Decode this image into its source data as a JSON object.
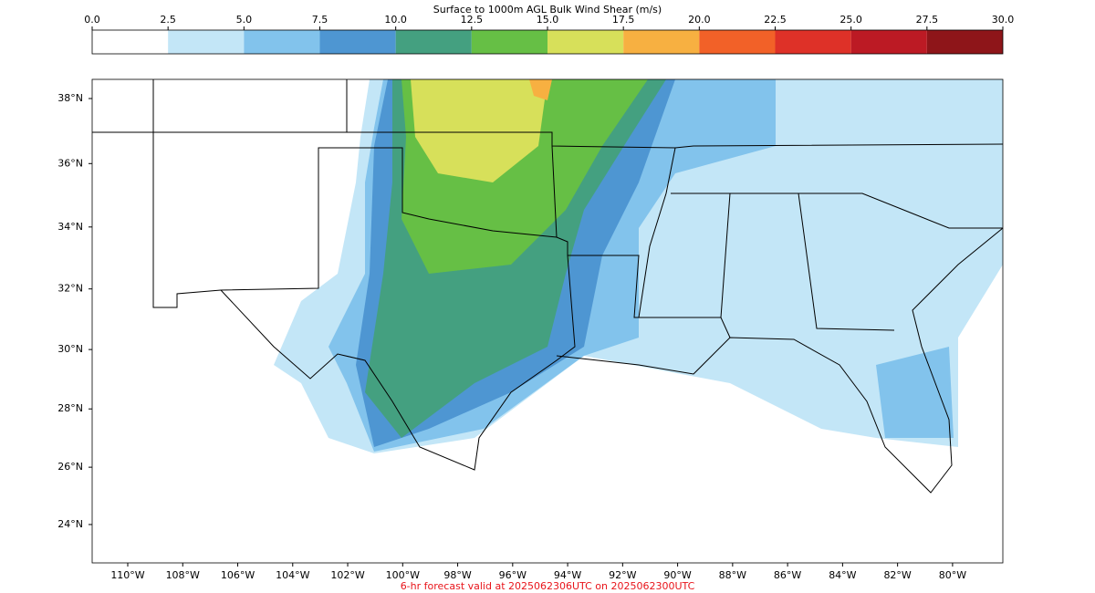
{
  "colorbar": {
    "title": "Surface to 1000m AGL Bulk Wind Shear (m/s)",
    "ticks": [
      {
        "value": 0,
        "label": "0.0"
      },
      {
        "value": 2.5,
        "label": "2.5"
      },
      {
        "value": 5,
        "label": "5.0"
      },
      {
        "value": 7.5,
        "label": "7.5"
      },
      {
        "value": 10,
        "label": "10.0"
      },
      {
        "value": 12.5,
        "label": "12.5"
      },
      {
        "value": 15,
        "label": "15.0"
      },
      {
        "value": 17.5,
        "label": "17.5"
      },
      {
        "value": 20,
        "label": "20.0"
      },
      {
        "value": 22.5,
        "label": "22.5"
      },
      {
        "value": 25,
        "label": "25.0"
      },
      {
        "value": 27.5,
        "label": "27.5"
      },
      {
        "value": 30,
        "label": "30.0"
      }
    ],
    "colors": [
      "#ffffff",
      "#c3e6f7",
      "#82c3ec",
      "#4e96d2",
      "#44a080",
      "#66bf45",
      "#d7e05a",
      "#f7b041",
      "#f26128",
      "#de3128",
      "#bc1a24",
      "#8e1519"
    ]
  },
  "map": {
    "lat_ticks": [
      {
        "value": 38,
        "label": "38°N"
      },
      {
        "value": 36,
        "label": "36°N"
      },
      {
        "value": 34,
        "label": "34°N"
      },
      {
        "value": 32,
        "label": "32°N"
      },
      {
        "value": 30,
        "label": "30°N"
      },
      {
        "value": 28,
        "label": "28°N"
      },
      {
        "value": 26,
        "label": "26°N"
      },
      {
        "value": 24,
        "label": "24°N"
      }
    ],
    "lon_ticks": [
      {
        "value": -110,
        "label": "110°W"
      },
      {
        "value": -108,
        "label": "108°W"
      },
      {
        "value": -106,
        "label": "106°W"
      },
      {
        "value": -104,
        "label": "104°W"
      },
      {
        "value": -102,
        "label": "102°W"
      },
      {
        "value": -100,
        "label": "100°W"
      },
      {
        "value": -98,
        "label": "98°W"
      },
      {
        "value": -96,
        "label": "96°W"
      },
      {
        "value": -94,
        "label": "94°W"
      },
      {
        "value": -92,
        "label": "92°W"
      },
      {
        "value": -90,
        "label": "90°W"
      },
      {
        "value": -88,
        "label": "88°W"
      },
      {
        "value": -86,
        "label": "86°W"
      },
      {
        "value": -84,
        "label": "84°W"
      },
      {
        "value": -82,
        "label": "82°W"
      },
      {
        "value": -80,
        "label": "80°W"
      }
    ]
  },
  "footer": "6-hr forecast valid at 2025062306UTC on 2025062300UTC"
}
